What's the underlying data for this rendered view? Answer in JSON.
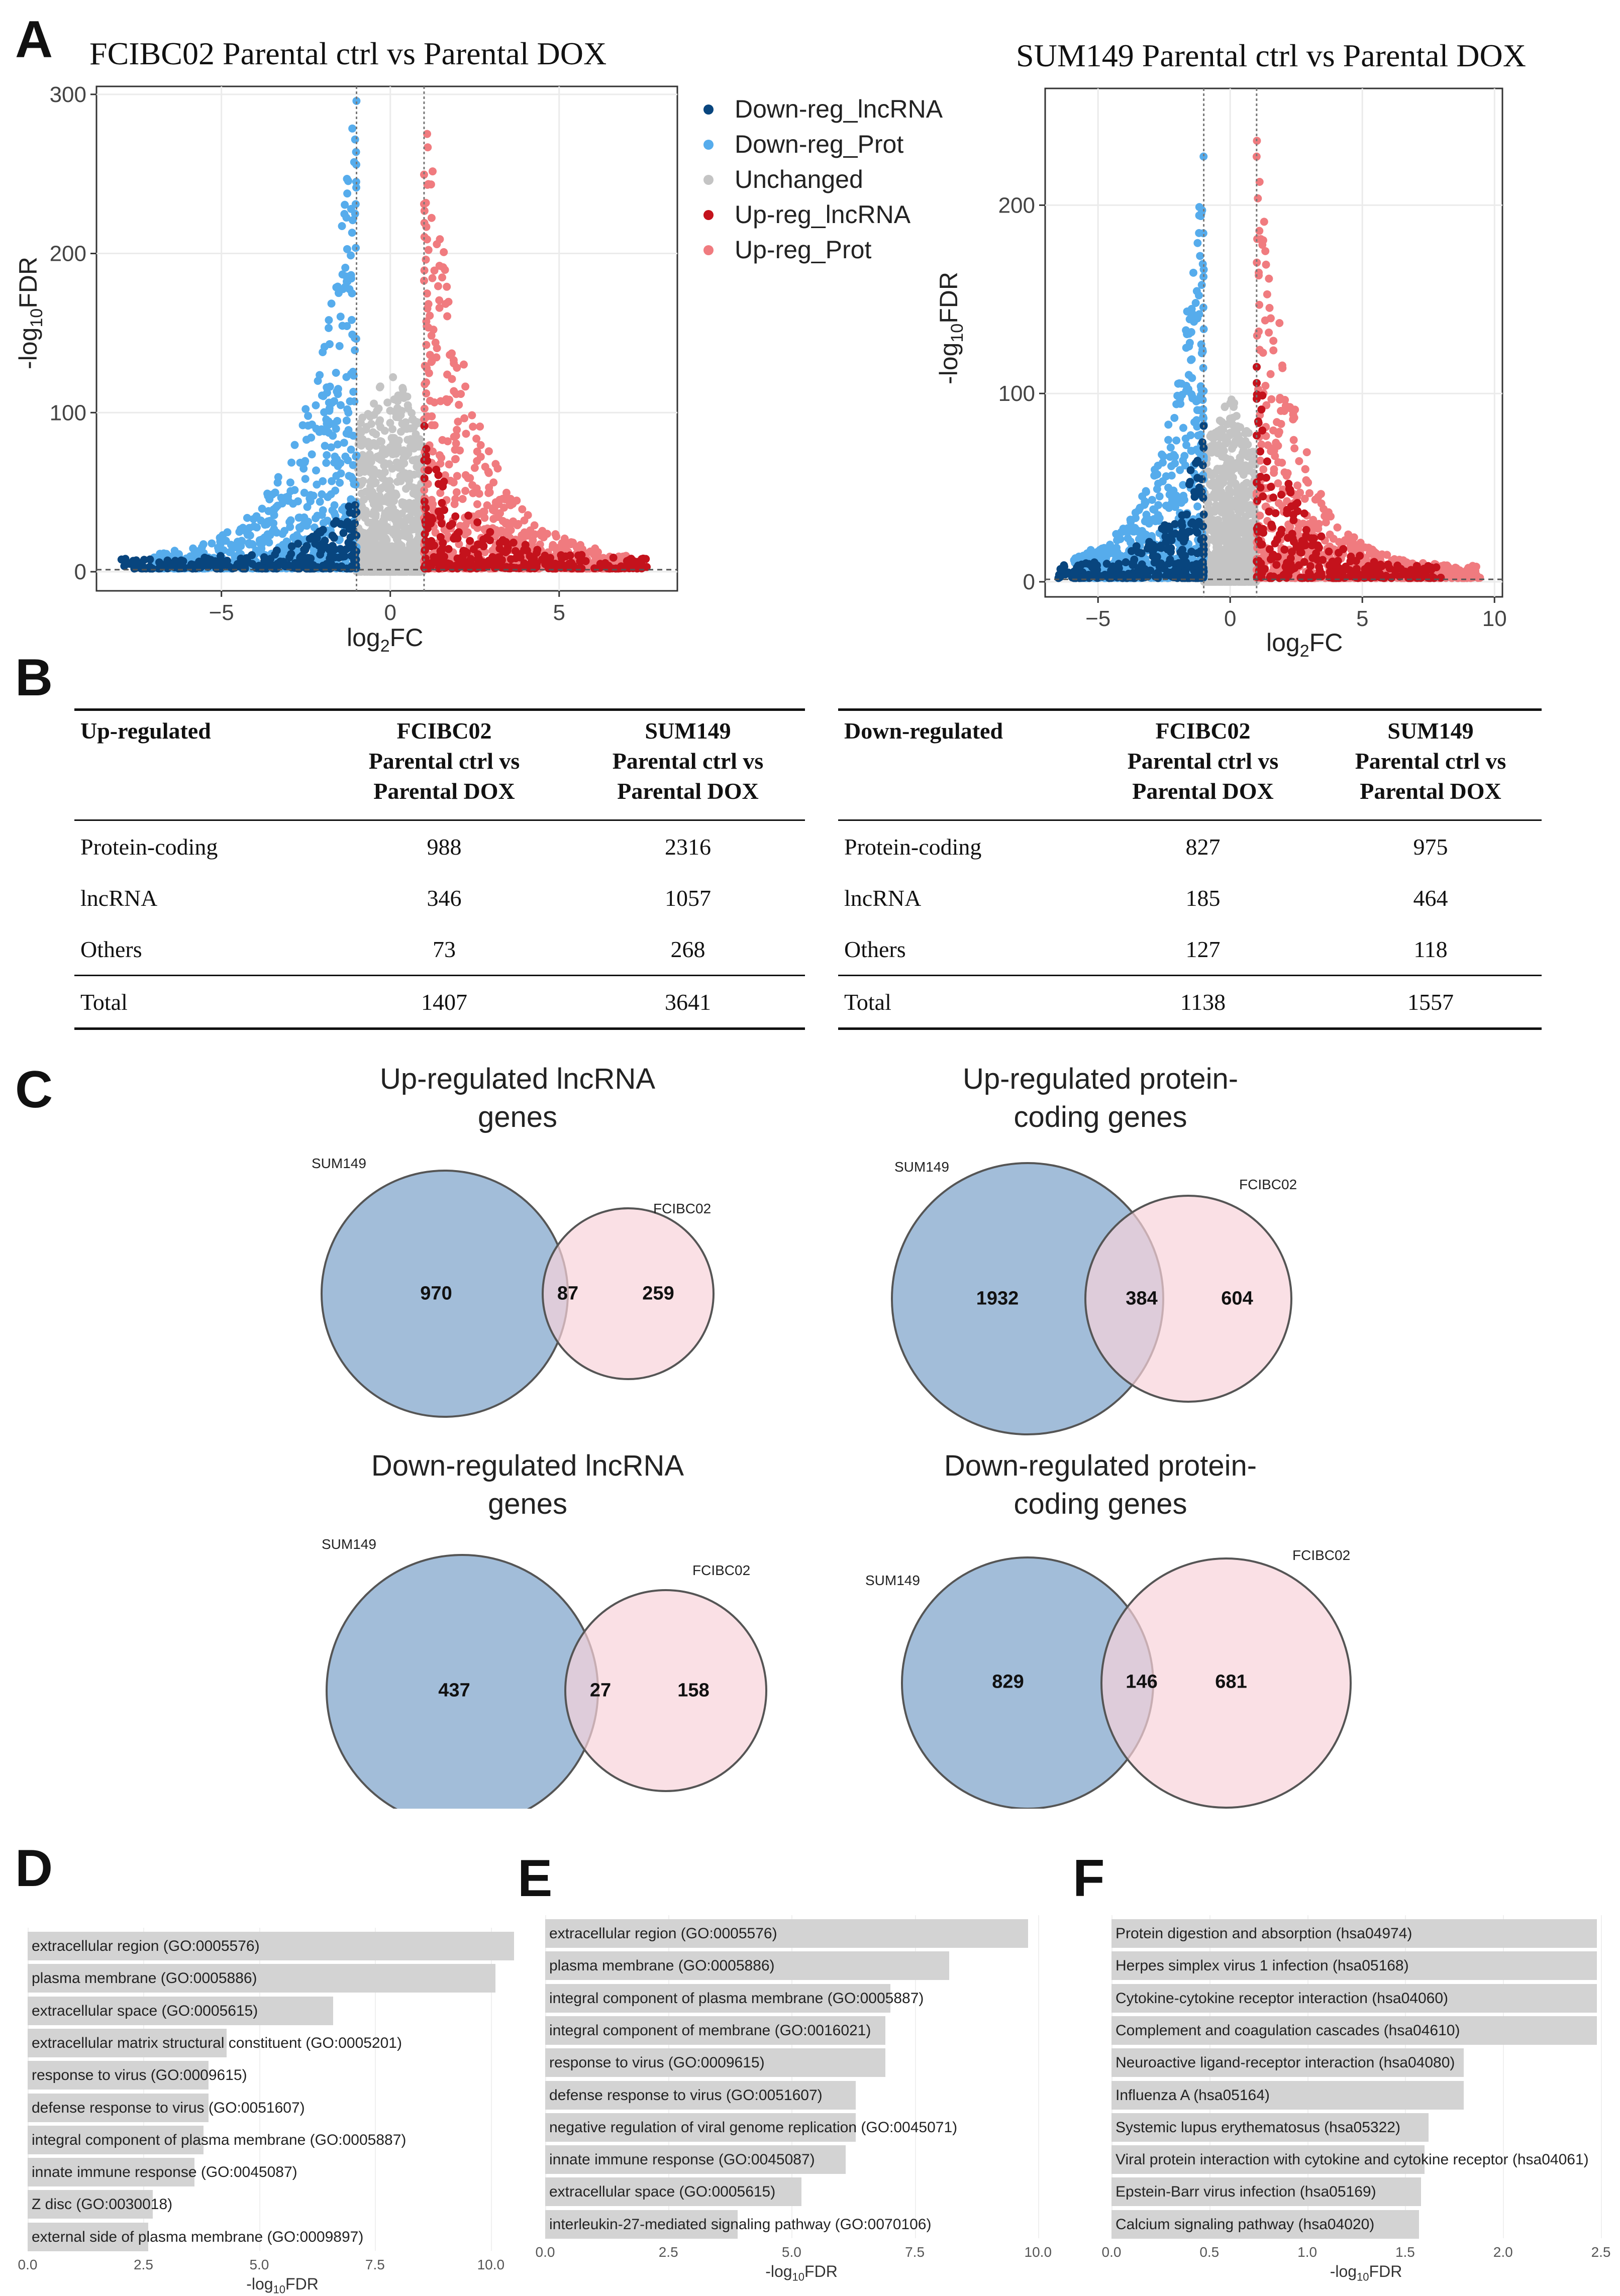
{
  "panels": {
    "A": "A",
    "B": "B",
    "C": "C",
    "D": "D",
    "E": "E",
    "F": "F"
  },
  "colors": {
    "down_lnc": "#08457e",
    "down_prot": "#56acec",
    "unchanged": "#c4c4c4",
    "up_lnc": "#c4121c",
    "up_prot": "#f07b7f",
    "venn_sum": "#9ab7d6",
    "venn_fci": "#f8d3da",
    "bar": "#d3d3d3"
  },
  "volcano_legend": [
    {
      "label": "Down-reg_lncRNA",
      "color": "#08457e"
    },
    {
      "label": "Down-reg_Prot",
      "color": "#56acec"
    },
    {
      "label": "Unchanged",
      "color": "#c4c4c4"
    },
    {
      "label": "Up-reg_lncRNA",
      "color": "#c4121c"
    },
    {
      "label": "Up-reg_Prot",
      "color": "#f07b7f"
    }
  ],
  "chart_data": [
    {
      "type": "scatter",
      "title": "FCIBC02 Parental ctrl vs Parental DOX",
      "xlabel": "log2FC",
      "ylabel": "-log10FDR",
      "xlim": [
        -8.7,
        8.5
      ],
      "ylim": [
        -12,
        305
      ],
      "xticks": [
        -5,
        0,
        5
      ],
      "yticks": [
        0,
        100,
        200,
        300
      ],
      "vlines": [
        -1,
        1
      ],
      "hline": 1.3,
      "series": [
        {
          "name": "Down-reg_lncRNA",
          "range_x": [
            -8,
            -1
          ],
          "peak_y": 40
        },
        {
          "name": "Down-reg_Prot",
          "range_x": [
            -7,
            -1
          ],
          "peak_y": 300
        },
        {
          "name": "Unchanged",
          "range_x": [
            -1,
            1
          ],
          "peak_y": 130
        },
        {
          "name": "Up-reg_lncRNA",
          "range_x": [
            1,
            7.7
          ],
          "peak_y": 85
        },
        {
          "name": "Up-reg_Prot",
          "range_x": [
            1,
            7
          ],
          "peak_y": 300
        }
      ]
    },
    {
      "type": "scatter",
      "title": "SUM149 Parental ctrl vs Parental DOX",
      "xlabel": "log2FC",
      "ylabel": "-log10FDR",
      "xlim": [
        -7,
        10.3
      ],
      "ylim": [
        -8,
        262
      ],
      "xticks": [
        -5,
        0,
        5,
        10
      ],
      "yticks": [
        0,
        100,
        200
      ],
      "vlines": [
        -1,
        1
      ],
      "hline": 1.3,
      "series": [
        {
          "name": "Down-reg_lncRNA",
          "range_x": [
            -6.5,
            -1
          ],
          "peak_y": 75
        },
        {
          "name": "Down-reg_Prot",
          "range_x": [
            -6,
            -1
          ],
          "peak_y": 220
        },
        {
          "name": "Unchanged",
          "range_x": [
            -1,
            1
          ],
          "peak_y": 100
        },
        {
          "name": "Up-reg_lncRNA",
          "range_x": [
            1,
            8
          ],
          "peak_y": 110
        },
        {
          "name": "Up-reg_Prot",
          "range_x": [
            1,
            9.5
          ],
          "peak_y": 255
        }
      ]
    },
    {
      "type": "table",
      "title": "Up-regulated",
      "columns": [
        "Up-regulated",
        "FCIBC02 Parental ctrl vs Parental DOX",
        "SUM149 Parental ctrl vs Parental DOX"
      ],
      "rows": [
        [
          "Protein-coding",
          "988",
          "2316"
        ],
        [
          "lncRNA",
          "346",
          "1057"
        ],
        [
          "Others",
          "73",
          "268"
        ],
        [
          "Total",
          "1407",
          "3641"
        ]
      ]
    },
    {
      "type": "table",
      "title": "Down-regulated",
      "columns": [
        "Down-regulated",
        "FCIBC02 Parental ctrl vs Parental DOX",
        "SUM149 Parental ctrl vs Parental DOX"
      ],
      "rows": [
        [
          "Protein-coding",
          "827",
          "975"
        ],
        [
          "lncRNA",
          "185",
          "464"
        ],
        [
          "Others",
          "127",
          "118"
        ],
        [
          "Total",
          "1138",
          "1557"
        ]
      ]
    },
    {
      "type": "bar",
      "orientation": "horizontal",
      "xlabel": "-log10FDR",
      "xlim": [
        0,
        11
      ],
      "xticks": [
        0,
        2.5,
        5,
        7.5,
        10
      ],
      "categories": [
        "extracellular region (GO:0005576)",
        "plasma membrane (GO:0005886)",
        "extracellular space (GO:0005615)",
        "extracellular matrix structural constituent (GO:0005201)",
        "response to virus (GO:0009615)",
        "defense response to virus (GO:0051607)",
        "integral component of plasma membrane (GO:0005887)",
        "innate immune response (GO:0045087)",
        "Z disc (GO:0030018)",
        "external side of plasma membrane (GO:0009897)"
      ],
      "values": [
        10.5,
        10.1,
        6.6,
        4.3,
        3.9,
        3.9,
        3.8,
        3.6,
        2.7,
        2.6
      ]
    },
    {
      "type": "bar",
      "orientation": "horizontal",
      "xlabel": "-log10FDR",
      "xlim": [
        0,
        10.4
      ],
      "xticks": [
        0,
        2.5,
        5,
        7.5,
        10
      ],
      "categories": [
        "extracellular region (GO:0005576)",
        "plasma membrane (GO:0005886)",
        "integral component of plasma membrane (GO:0005887)",
        "integral component of membrane (GO:0016021)",
        "response to virus (GO:0009615)",
        "defense response to virus (GO:0051607)",
        "negative regulation of viral genome replication (GO:0045071)",
        "innate immune response (GO:0045087)",
        "extracellular space (GO:0005615)",
        "interleukin-27-mediated signaling pathway (GO:0070106)"
      ],
      "values": [
        9.8,
        8.2,
        7.0,
        6.9,
        6.9,
        6.3,
        6.3,
        6.1,
        5.2,
        3.9
      ]
    },
    {
      "type": "bar",
      "orientation": "horizontal",
      "xlabel": "-log10FDR",
      "xlim": [
        0,
        2.6
      ],
      "xticks": [
        0.0,
        0.5,
        1.0,
        1.5,
        2.0,
        2.5
      ],
      "categories": [
        "Protein digestion and absorption (hsa04974)",
        "Herpes simplex virus 1 infection (hsa05168)",
        "Cytokine-cytokine receptor interaction (hsa04060)",
        "Complement and coagulation cascades (hsa04610)",
        "Neuroactive ligand-receptor interaction (hsa04080)",
        "Influenza A (hsa05164)",
        "Systemic lupus erythematosus (hsa05322)",
        "Viral protein interaction with cytokine and cytokine receptor (hsa04061)",
        "Epstein-Barr virus infection (hsa05169)",
        "Calcium signaling pathway (hsa04020)"
      ],
      "values": [
        2.48,
        2.48,
        2.48,
        2.48,
        1.8,
        1.8,
        1.62,
        1.6,
        1.58,
        1.57
      ]
    }
  ],
  "volcano_axes": {
    "xlabel_base": "log",
    "xlabel_sub": "2",
    "xlabel_tail": "FC",
    "ylabel_pre": "-log",
    "ylabel_sub": "10",
    "ylabel_tail": "FDR",
    "bar_xlabel_pre": "-log",
    "bar_xlabel_tail": "FDR"
  },
  "tables": {
    "up": {
      "head": [
        "Up-regulated",
        "FCIBC02",
        "Parental ctrl vs",
        "Parental DOX",
        "SUM149",
        "Parental ctrl vs",
        "Parental DOX"
      ],
      "rows": [
        [
          "Protein-coding",
          "988",
          "2316"
        ],
        [
          "lncRNA",
          "346",
          "1057"
        ],
        [
          "Others",
          "73",
          "268"
        ],
        [
          "Total",
          "1407",
          "3641"
        ]
      ]
    },
    "down": {
      "head": [
        "Down-regulated",
        "FCIBC02",
        "Parental ctrl vs",
        "Parental DOX",
        "SUM149",
        "Parental ctrl vs",
        "Parental DOX"
      ],
      "rows": [
        [
          "Protein-coding",
          "827",
          "975"
        ],
        [
          "lncRNA",
          "185",
          "464"
        ],
        [
          "Others",
          "127",
          "118"
        ],
        [
          "Total",
          "1138",
          "1557"
        ]
      ]
    }
  },
  "venns": [
    {
      "title_l1": "Up-regulated lncRNA",
      "title_l2": "genes",
      "left_label": "SUM149",
      "right_label": "FCIBC02",
      "left_only": "970",
      "overlap": "87",
      "right_only": "259"
    },
    {
      "title_l1": "Up-regulated protein-",
      "title_l2": "coding genes",
      "left_label": "SUM149",
      "right_label": "FCIBC02",
      "left_only": "1932",
      "overlap": "384",
      "right_only": "604"
    },
    {
      "title_l1": "Down-regulated lncRNA",
      "title_l2": "genes",
      "left_label": "SUM149",
      "right_label": "FCIBC02",
      "left_only": "437",
      "overlap": "27",
      "right_only": "158"
    },
    {
      "title_l1": "Down-regulated protein-",
      "title_l2": "coding genes",
      "left_label": "SUM149",
      "right_label": "FCIBC02",
      "left_only": "829",
      "overlap": "146",
      "right_only": "681"
    }
  ]
}
